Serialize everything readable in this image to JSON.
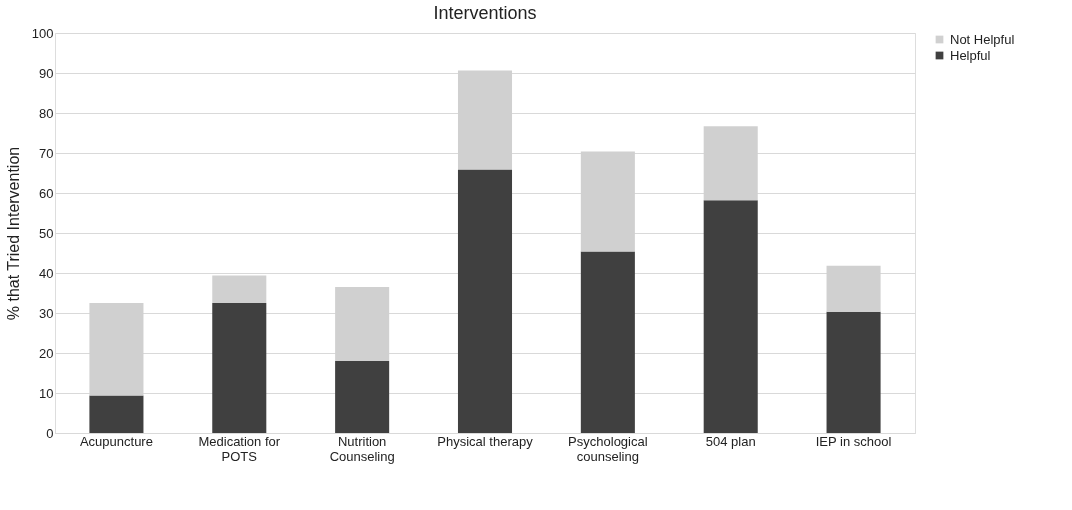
{
  "chart_data": {
    "type": "bar",
    "title": "Interventions",
    "ylabel": "% that Tried Intervention",
    "categories": [
      "Acupuncture",
      "Medication for POTS",
      "Nutrition Counseling",
      "Physical therapy",
      "Psychological counseling",
      "504 plan",
      "IEP in school"
    ],
    "series": [
      {
        "name": "Helpful",
        "color": "#404040",
        "values": [
          9.4,
          32.5,
          18.0,
          65.9,
          45.4,
          58.2,
          30.3
        ]
      },
      {
        "name": "Not Helpful",
        "color": "#d0d0d0",
        "values": [
          23.1,
          6.9,
          18.5,
          24.7,
          25.0,
          18.5,
          11.5
        ]
      }
    ],
    "stacked": true,
    "ylim": [
      0,
      100
    ],
    "yticks": [
      0,
      10,
      20,
      30,
      40,
      50,
      60,
      70,
      80,
      90,
      100
    ],
    "grid": "y",
    "legend": "right"
  }
}
